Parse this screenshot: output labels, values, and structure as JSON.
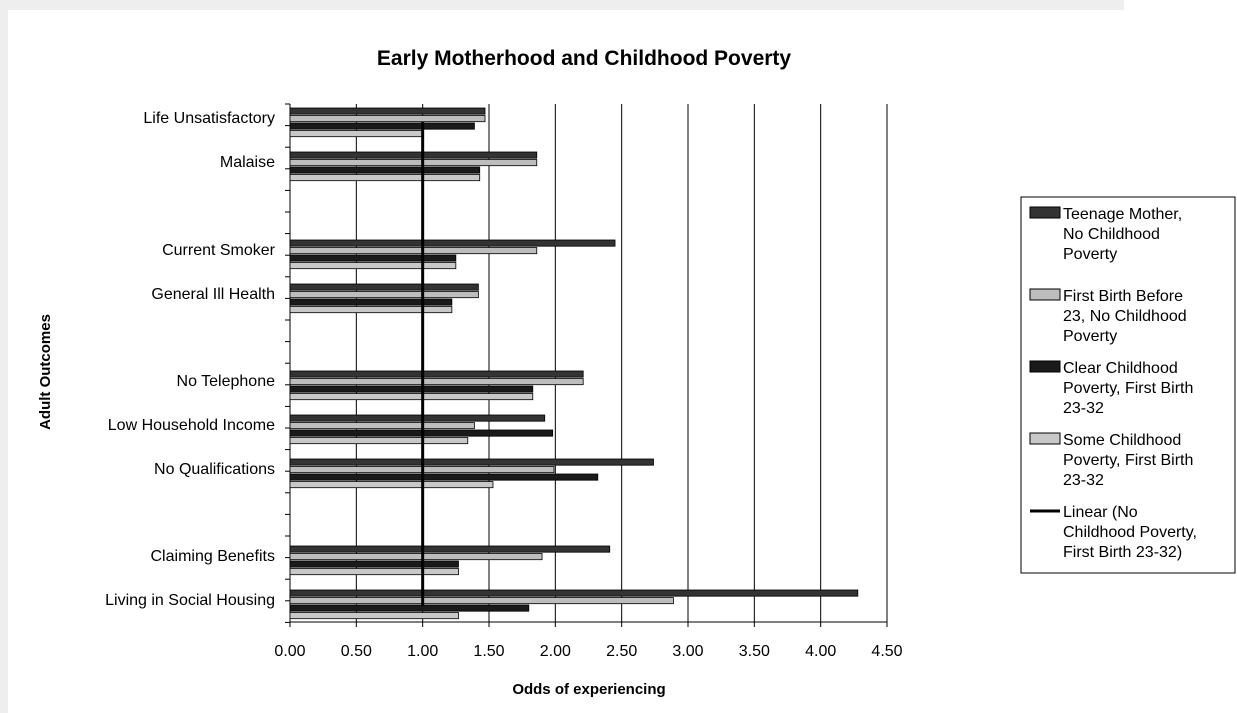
{
  "chart_data": {
    "type": "bar",
    "orientation": "horizontal",
    "title": "Early Motherhood and Childhood Poverty",
    "xlabel": "Odds of experiencing",
    "ylabel": "Adult Outcomes",
    "xlim": [
      0,
      4.5
    ],
    "x_ticks": [
      "0.00",
      "0.50",
      "1.00",
      "1.50",
      "2.00",
      "2.50",
      "3.00",
      "3.50",
      "4.00",
      "4.50"
    ],
    "grid": "vertical major gridlines",
    "legend_position": "right",
    "categories": [
      "Life Unsatisfactory",
      "Malaise",
      "Current Smoker",
      "General Ill Health",
      "No Telephone",
      "Low Household Income",
      "No Qualifications",
      "Claiming Benefits",
      "Living in Social Housing"
    ],
    "series": [
      {
        "name": "Teenage Mother, No Childhood Poverty",
        "color": "#333333",
        "values": [
          1.47,
          1.86,
          2.45,
          1.42,
          2.21,
          1.92,
          2.74,
          2.41,
          4.28
        ]
      },
      {
        "name": "First Birth Before 23, No Childhood Poverty",
        "color": "#bdbdbd",
        "values": [
          1.47,
          1.86,
          1.86,
          1.42,
          2.21,
          1.39,
          1.99,
          1.9,
          2.89
        ]
      },
      {
        "name": "Clear Childhood Poverty, First Birth 23-32",
        "color": "#1a1a1a",
        "values": [
          1.39,
          1.43,
          1.25,
          1.22,
          1.83,
          1.98,
          2.32,
          1.27,
          1.8
        ]
      },
      {
        "name": "Some Childhood Poverty, First Birth 23-32",
        "color": "#c8c8c8",
        "values": [
          1.0,
          1.43,
          1.25,
          1.22,
          1.83,
          1.34,
          1.53,
          1.27,
          1.27
        ]
      }
    ],
    "reference_line": {
      "name": "Linear (No Childhood Poverty, First Birth 23-32)",
      "x": 1.0,
      "color": "#000000"
    },
    "legend_entries": [
      {
        "lines": [
          "Teenage Mother,",
          "No Childhood",
          "Poverty"
        ],
        "color": "#333333",
        "kind": "box"
      },
      {
        "lines": [
          "First Birth Before",
          "23, No Childhood",
          "Poverty"
        ],
        "color": "#bdbdbd",
        "kind": "box"
      },
      {
        "lines": [
          "Clear Childhood",
          "Poverty, First Birth",
          "23-32"
        ],
        "color": "#1a1a1a",
        "kind": "box"
      },
      {
        "lines": [
          "Some Childhood",
          "Poverty, First Birth",
          "23-32"
        ],
        "color": "#c8c8c8",
        "kind": "box"
      },
      {
        "lines": [
          "Linear (No",
          "Childhood Poverty,",
          "First Birth 23-32)"
        ],
        "color": "#000000",
        "kind": "line"
      }
    ]
  }
}
